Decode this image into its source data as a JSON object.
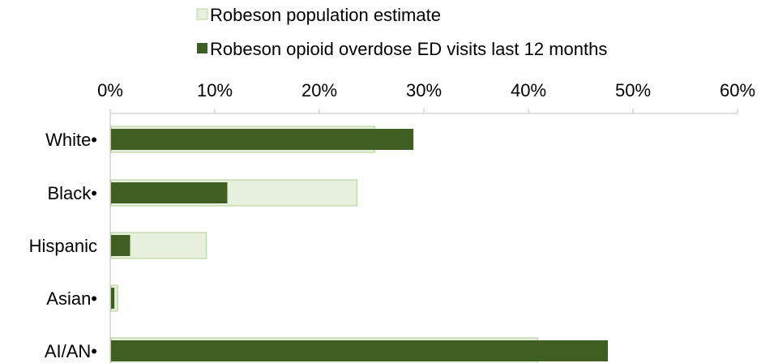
{
  "chart_data": {
    "type": "bar",
    "orientation": "horizontal",
    "categories": [
      "White•",
      "Black•",
      "Hispanic",
      "Asian•",
      "AI/AN•"
    ],
    "series": [
      {
        "name": "Robeson population estimate",
        "color": "#e6f0dc",
        "border": "#b9d59f",
        "values": [
          25.3,
          23.6,
          9.2,
          0.7,
          40.9
        ]
      },
      {
        "name": "Robeson opioid overdose ED visits last 12 months",
        "color": "#3f5f22",
        "values": [
          29.0,
          11.2,
          1.9,
          0.4,
          47.6
        ]
      }
    ],
    "xlim": [
      0,
      60
    ],
    "xticks": [
      "0%",
      "10%",
      "20%",
      "30%",
      "40%",
      "50%",
      "60%"
    ],
    "axis_position": "top",
    "legend_position": "top",
    "grid": false
  }
}
